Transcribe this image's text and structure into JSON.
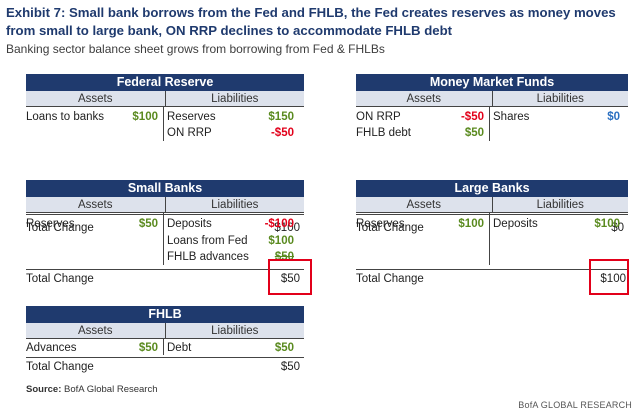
{
  "header": {
    "title": "Exhibit 7: Small bank borrows from the Fed and FHLB, the Fed creates reserves as money moves from small to large bank, ON RRP declines to accommodate FHLB debt",
    "subtitle": "Banking sector balance sheet grows from borrowing from Fed & FHLBs"
  },
  "labels": {
    "assets": "Assets",
    "liabilities": "Liabilities",
    "total_change": "Total Change"
  },
  "fed": {
    "title": "Federal Reserve",
    "assets": [
      {
        "label": "Loans to banks",
        "value": "$100"
      }
    ],
    "liabilities": [
      {
        "label": "Reserves",
        "value": "$150"
      },
      {
        "label": "ON RRP",
        "value": "-$50"
      }
    ],
    "total": "$100"
  },
  "mmf": {
    "title": "Money Market Funds",
    "assets": [
      {
        "label": "ON RRP",
        "value": "-$50"
      },
      {
        "label": "FHLB debt",
        "value": "$50"
      }
    ],
    "liabilities": [
      {
        "label": "Shares",
        "value": "$0"
      }
    ],
    "total": "$0"
  },
  "small": {
    "title": "Small Banks",
    "assets": [
      {
        "label": "Reserves",
        "value": "$50"
      }
    ],
    "liabilities": [
      {
        "label": "Deposits",
        "value": "-$100"
      },
      {
        "label": "Loans from Fed",
        "value": "$100"
      },
      {
        "label": "FHLB advances",
        "value": "$50"
      }
    ],
    "total": "$50"
  },
  "large": {
    "title": "Large Banks",
    "assets": [
      {
        "label": "Reserves",
        "value": "$100"
      }
    ],
    "liabilities": [
      {
        "label": "Deposits",
        "value": "$100"
      }
    ],
    "total": "$100"
  },
  "fhlb": {
    "title": "FHLB",
    "assets": [
      {
        "label": "Advances",
        "value": "$50"
      }
    ],
    "liabilities": [
      {
        "label": "Debt",
        "value": "$50"
      }
    ],
    "total": "$50"
  },
  "footer": {
    "source_label": "Source:",
    "source_text": "BofA Global Research",
    "brand": "BofA GLOBAL RESEARCH"
  },
  "colors": {
    "navy": "#1f3a6e",
    "header_band": "#dde2ec",
    "negative": "#e2001a",
    "positive": "#5a8a1f",
    "blue": "#2a6fc1"
  }
}
